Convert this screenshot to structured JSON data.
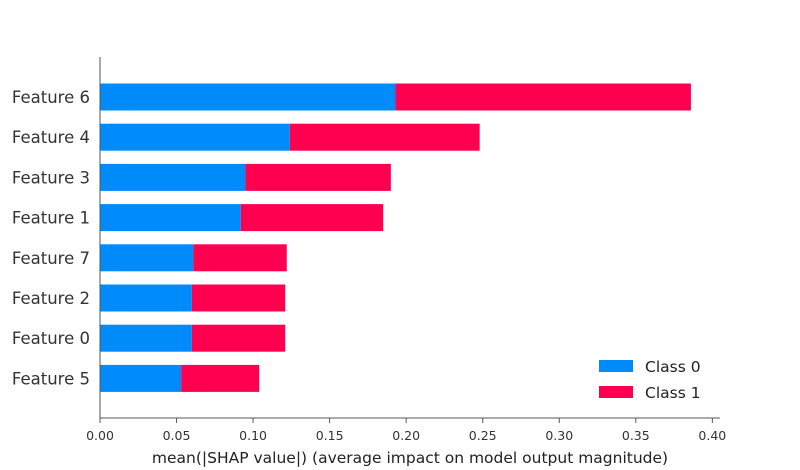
{
  "chart_data": {
    "type": "bar",
    "orientation": "horizontal",
    "stacked": true,
    "title": "",
    "xlabel": "mean(|SHAP value|) (average impact on model output magnitude)",
    "ylabel": "",
    "xlim": [
      0.0,
      0.405
    ],
    "xticks": [
      "0.00",
      "0.05",
      "0.10",
      "0.15",
      "0.20",
      "0.25",
      "0.30",
      "0.35",
      "0.40"
    ],
    "categories": [
      "Feature 6",
      "Feature 4",
      "Feature 3",
      "Feature 1",
      "Feature 7",
      "Feature 2",
      "Feature 0",
      "Feature 5"
    ],
    "series": [
      {
        "name": "Class 0",
        "color": "#008bfb",
        "values": [
          0.193,
          0.124,
          0.095,
          0.092,
          0.061,
          0.06,
          0.06,
          0.053
        ]
      },
      {
        "name": "Class 1",
        "color": "#ff0051",
        "values": [
          0.193,
          0.124,
          0.095,
          0.093,
          0.061,
          0.061,
          0.061,
          0.051
        ]
      }
    ],
    "grid": false,
    "legend_position": "bottom-right"
  }
}
